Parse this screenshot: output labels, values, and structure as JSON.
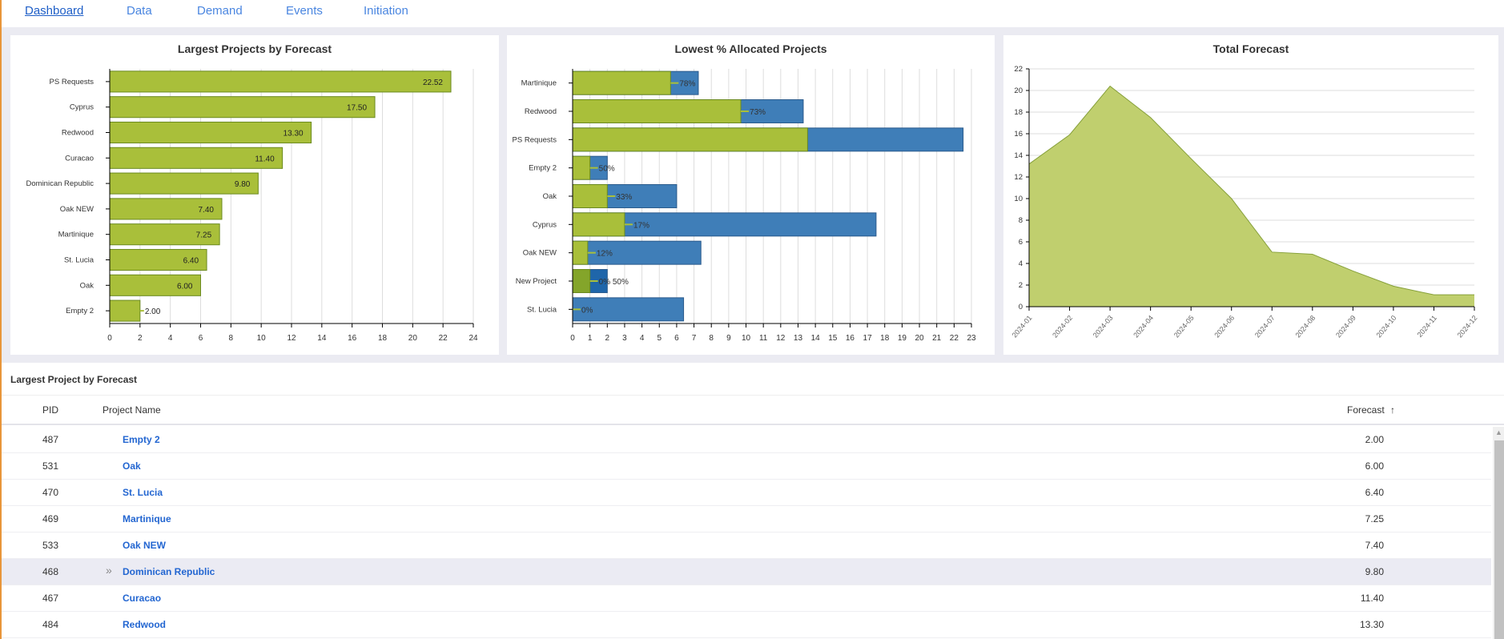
{
  "nav": {
    "tabs": [
      {
        "label": "Dashboard",
        "active": true
      },
      {
        "label": "Data"
      },
      {
        "label": "Demand"
      },
      {
        "label": "Events"
      },
      {
        "label": "Initiation"
      }
    ]
  },
  "colors": {
    "allocated": "#a9bf3a",
    "remaining": "#3f7eb8",
    "area": "#c0cf6e",
    "accent": "#2366d1"
  },
  "chart_data": [
    {
      "type": "bar",
      "title": "Largest Projects by Forecast",
      "orientation": "horizontal",
      "categories": [
        "PS Requests",
        "Cyprus",
        "Redwood",
        "Curacao",
        "Dominican Republic",
        "Oak NEW",
        "Martinique",
        "St. Lucia",
        "Oak",
        "Empty 2"
      ],
      "values": [
        22.52,
        17.5,
        13.3,
        11.4,
        9.8,
        7.4,
        7.25,
        6.4,
        6.0,
        2.0
      ],
      "data_labels": [
        "22.52",
        "17.50",
        "13.30",
        "11.40",
        "9.80",
        "7.40",
        "7.25",
        "6.40",
        "6.00",
        "2.00"
      ],
      "xlim": [
        0,
        24
      ],
      "xticks": [
        0,
        2,
        4,
        6,
        8,
        10,
        12,
        14,
        16,
        18,
        20,
        22,
        24
      ],
      "grid": true
    },
    {
      "type": "bar",
      "title": "Lowest % Allocated Projects",
      "orientation": "horizontal",
      "stacked": true,
      "categories": [
        "Martinique",
        "Redwood",
        "PS Requests",
        "Empty 2",
        "Oak",
        "Cyprus",
        "Oak NEW",
        "New Project",
        "St. Lucia"
      ],
      "allocated": [
        5.65,
        9.7,
        13.55,
        1,
        2,
        3,
        0.87,
        1,
        0
      ],
      "total": [
        7.25,
        13.3,
        22.52,
        2,
        6,
        17.5,
        7.4,
        2,
        6.4
      ],
      "data_labels": [
        "78%",
        "73%",
        "",
        "50%",
        "33%",
        "17%",
        "12%",
        "0%   50%",
        "0%"
      ],
      "xlim": [
        0,
        23
      ],
      "xticks": [
        0,
        1,
        2,
        3,
        4,
        5,
        6,
        7,
        8,
        9,
        10,
        11,
        12,
        13,
        14,
        15,
        16,
        17,
        18,
        19,
        20,
        21,
        22,
        23
      ],
      "grid": true
    },
    {
      "type": "area",
      "title": "Total Forecast",
      "x": [
        "2024-01",
        "2024-02",
        "2024-03",
        "2024-04",
        "2024-05",
        "2024-06",
        "2024-07",
        "2024-08",
        "2024-09",
        "2024-10",
        "2024-11",
        "2024-12"
      ],
      "values": [
        13.2,
        15.9,
        20.4,
        17.5,
        13.7,
        10.0,
        5.05,
        4.85,
        3.3,
        1.9,
        1.1,
        1.1
      ],
      "ylim": [
        0,
        22
      ],
      "yticks": [
        0,
        2,
        4,
        6,
        8,
        10,
        12,
        14,
        16,
        18,
        20,
        22
      ],
      "grid": true
    }
  ],
  "table": {
    "title": "Largest Project by Forecast",
    "columns": {
      "pid": "PID",
      "name": "Project Name",
      "forecast": "Forecast",
      "sort_icon": "↑"
    },
    "chevron": "»",
    "rows": [
      {
        "pid": "487",
        "name": "Empty 2",
        "forecast": "2.00"
      },
      {
        "pid": "531",
        "name": "Oak",
        "forecast": "6.00"
      },
      {
        "pid": "470",
        "name": "St. Lucia",
        "forecast": "6.40"
      },
      {
        "pid": "469",
        "name": "Martinique",
        "forecast": "7.25"
      },
      {
        "pid": "533",
        "name": "Oak NEW",
        "forecast": "7.40"
      },
      {
        "pid": "468",
        "name": "Dominican Republic",
        "forecast": "9.80",
        "hover": true
      },
      {
        "pid": "467",
        "name": "Curacao",
        "forecast": "11.40"
      },
      {
        "pid": "484",
        "name": "Redwood",
        "forecast": "13.30"
      }
    ]
  }
}
